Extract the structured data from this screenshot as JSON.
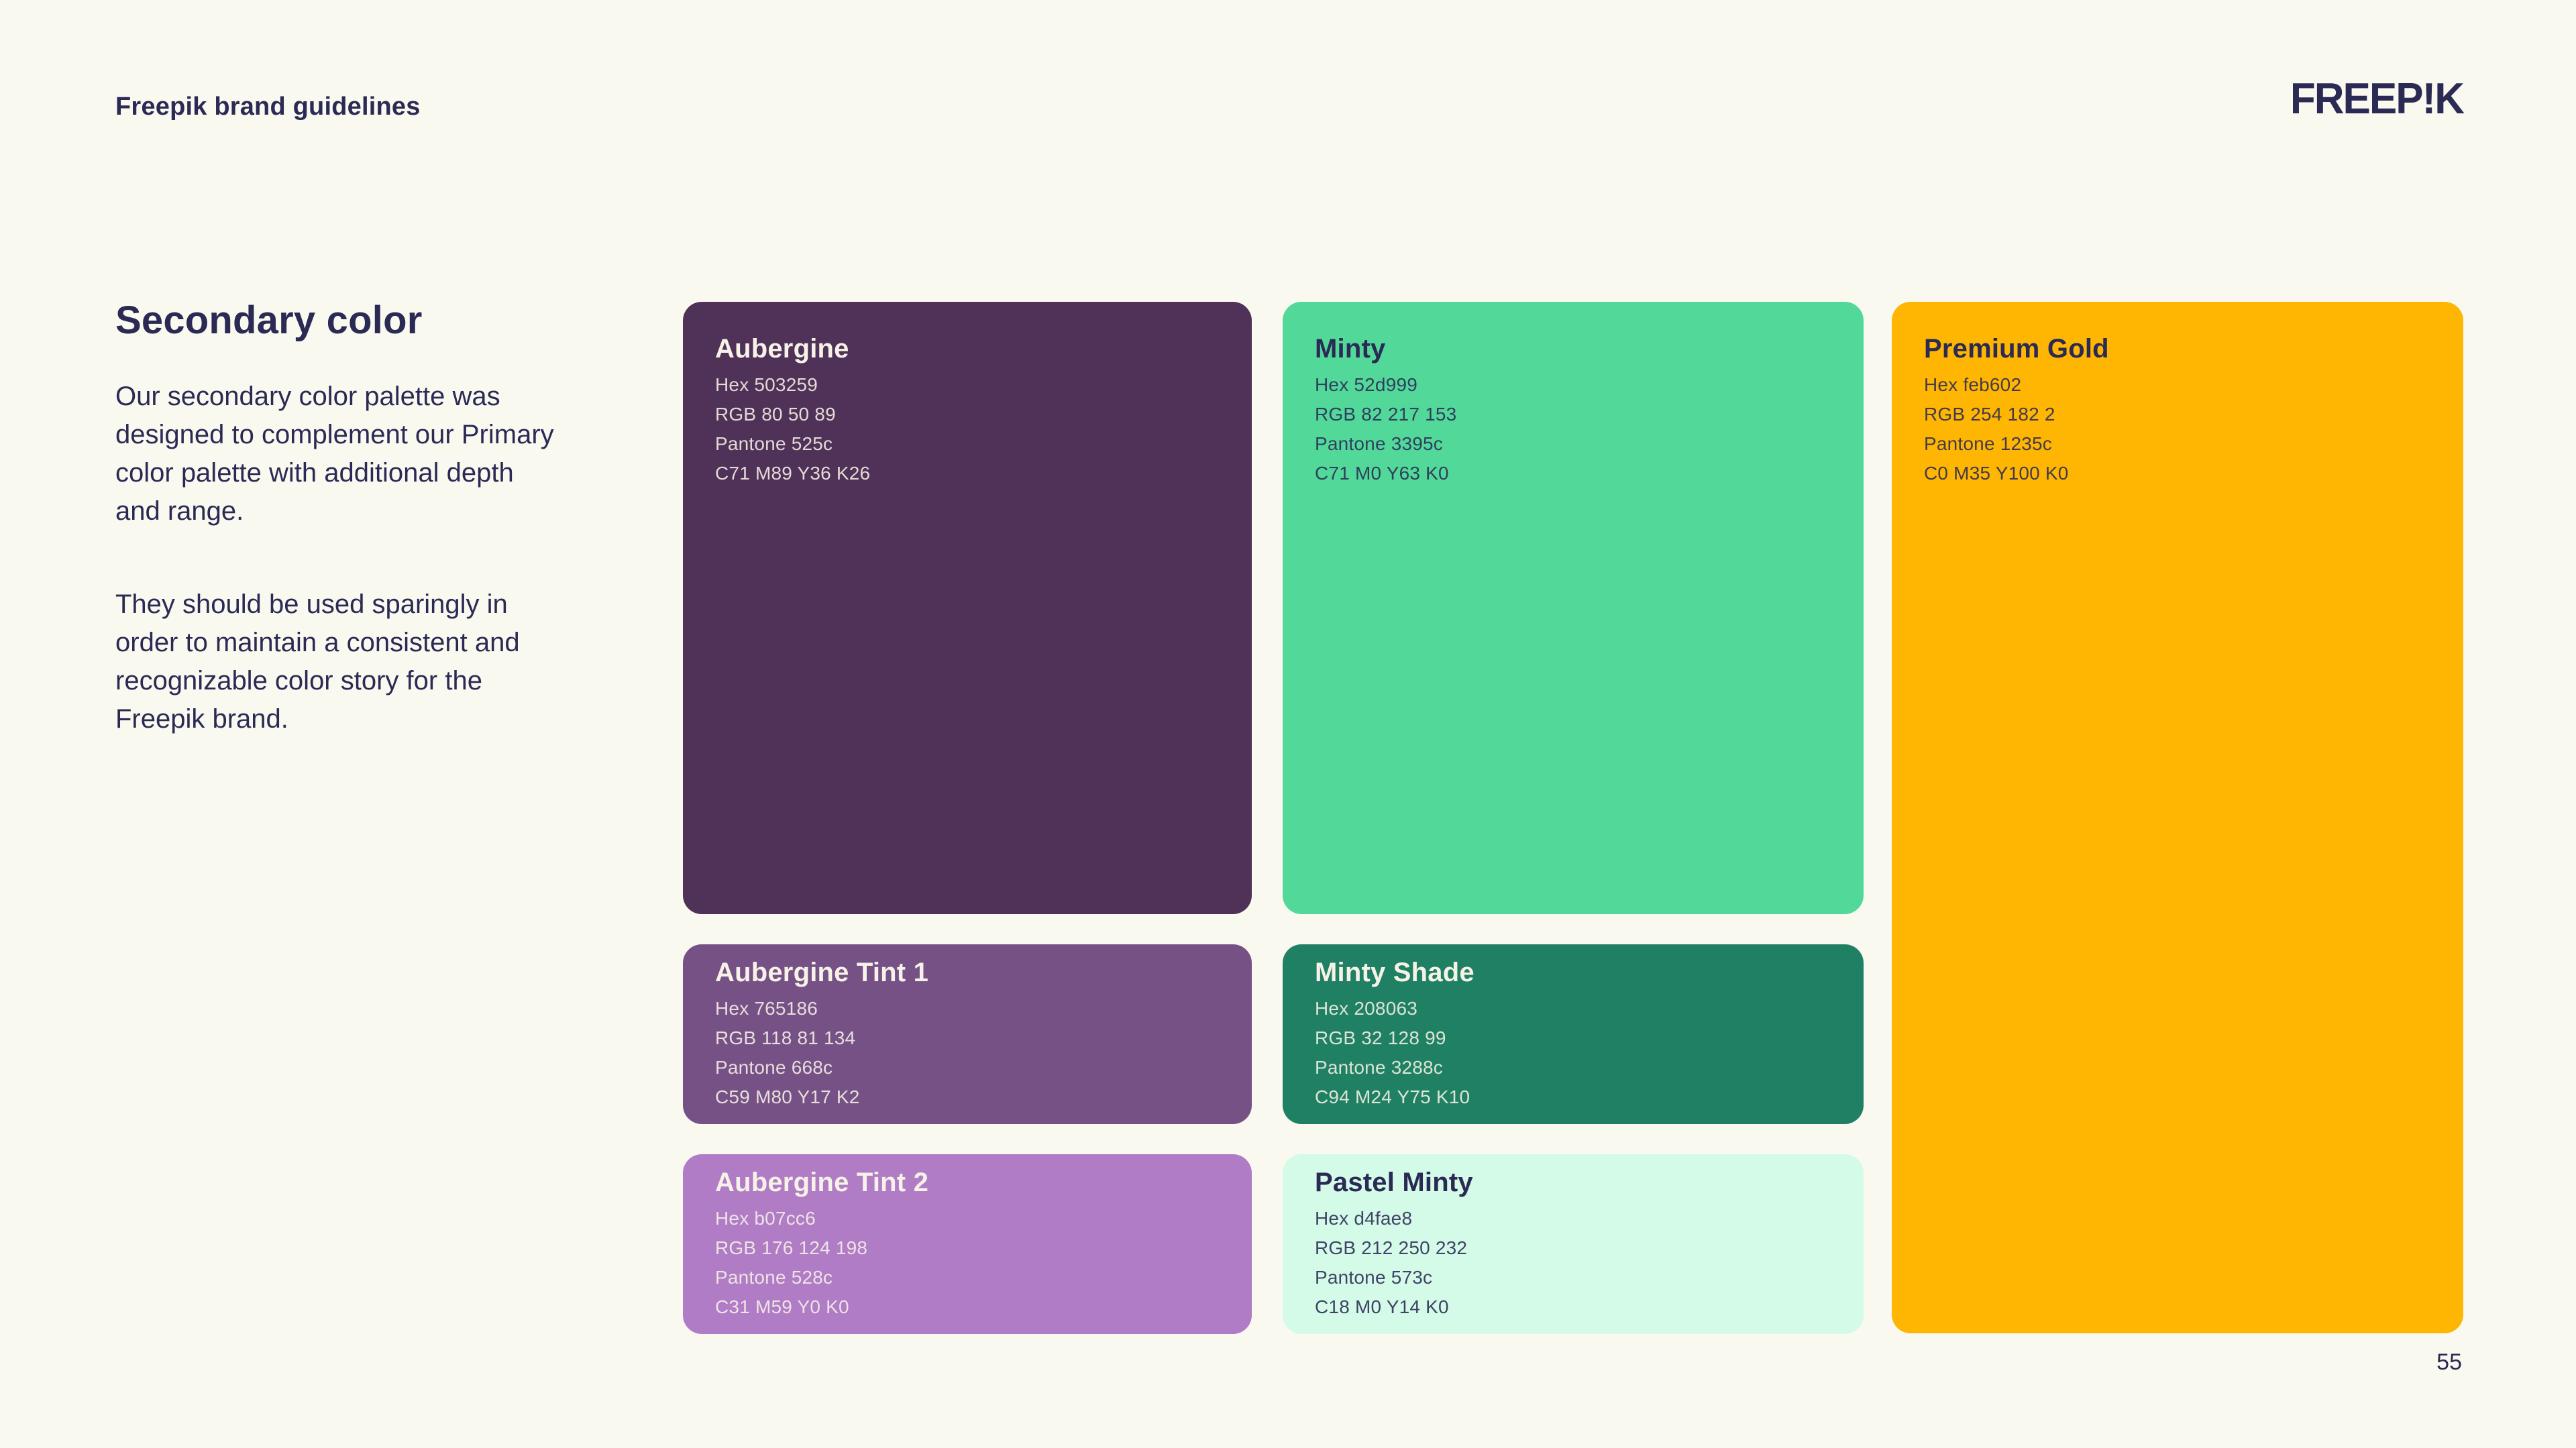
{
  "page": {
    "background": "#FAF9F0",
    "navy": "#2B2A55",
    "page_number": "55"
  },
  "header": {
    "title": "Freepik brand guidelines",
    "logo_text": "FREEP!K"
  },
  "intro": {
    "heading": "Secondary color",
    "paragraph1_lines": [
      "Our secondary color palette was",
      "designed to complement our Primary",
      "color palette with additional depth",
      "and range."
    ],
    "paragraph2_lines": [
      "They should be used sparingly in",
      "order to maintain a consistent and",
      "recognizable color story for the",
      "Freepik brand."
    ]
  },
  "swatches": [
    {
      "name": "Aubergine",
      "hex": "Hex 503259",
      "rgb": "RGB 80 50 89",
      "pantone": "Pantone 525c",
      "cmyk": "C71 M89 Y36 K26",
      "bg": "#503259",
      "fg": "#F7F2E7"
    },
    {
      "name": "Minty",
      "hex": "Hex 52d999",
      "rgb": "RGB 82 217 153",
      "pantone": "Pantone 3395c",
      "cmyk": "C71 M0 Y63 K0",
      "bg": "#52D999",
      "fg": "#2B2A55"
    },
    {
      "name": "Premium Gold",
      "hex": "Hex feb602",
      "rgb": "RGB 254 182 2",
      "pantone": "Pantone 1235c",
      "cmyk": "C0 M35 Y100 K0",
      "bg": "#FEB602",
      "fg": "#2B2A55"
    },
    {
      "name": "Aubergine Tint 1",
      "hex": "Hex 765186",
      "rgb": "RGB 118 81 134",
      "pantone": "Pantone 668c",
      "cmyk": "C59 M80 Y17 K2",
      "bg": "#765186",
      "fg": "#F7F2E7"
    },
    {
      "name": "Minty Shade",
      "hex": "Hex 208063",
      "rgb": "RGB 32 128 99",
      "pantone": "Pantone 3288c",
      "cmyk": "C94 M24 Y75 K10",
      "bg": "#208063",
      "fg": "#F7F2E7"
    },
    {
      "name": "Aubergine Tint 2",
      "hex": "Hex b07cc6",
      "rgb": "RGB 176 124 198",
      "pantone": "Pantone 528c",
      "cmyk": "C31 M59 Y0 K0",
      "bg": "#B07CC6",
      "fg": "#F7F2E7"
    },
    {
      "name": "Pastel Minty",
      "hex": "Hex d4fae8",
      "rgb": "RGB 212 250 232",
      "pantone": "Pantone 573c",
      "cmyk": "C18 M0 Y14 K0",
      "bg": "#D4FAE8",
      "fg": "#2B2A55"
    }
  ]
}
